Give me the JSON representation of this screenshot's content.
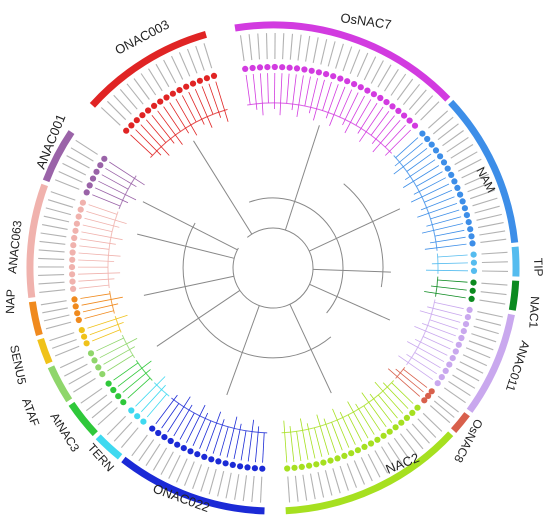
{
  "clades": [
    {
      "key": "onac003",
      "label": "ONAC003",
      "color": "#e02424"
    },
    {
      "key": "osnac7",
      "label": "OsNAC7",
      "color": "#d23be0"
    },
    {
      "key": "nam",
      "label": "NAM",
      "color": "#3d8ee8"
    },
    {
      "key": "tip",
      "label": "TIP",
      "color": "#55bcef"
    },
    {
      "key": "nac1",
      "label": "NAC1",
      "color": "#0b8a1f"
    },
    {
      "key": "anac011",
      "label": "ANAC011",
      "color": "#c9a8ee"
    },
    {
      "key": "osnac8",
      "label": "OsNAC8",
      "color": "#d8604c"
    },
    {
      "key": "nac2",
      "label": "NAC2",
      "color": "#a6e020"
    },
    {
      "key": "onac022",
      "label": "ONAC022",
      "color": "#1b2ad6"
    },
    {
      "key": "tern",
      "label": "TERN",
      "color": "#3fd9f0"
    },
    {
      "key": "anac3",
      "label": "AtNAC3",
      "color": "#2fc83a"
    },
    {
      "key": "ataf",
      "label": "ATAF",
      "color": "#8fd66b"
    },
    {
      "key": "senu5",
      "label": "SENU5",
      "color": "#f0c21a"
    },
    {
      "key": "nap",
      "label": "NAP",
      "color": "#f08a1e"
    },
    {
      "key": "anac063",
      "label": "ANAC063",
      "color": "#f0b2ad"
    },
    {
      "key": "anac001",
      "label": "ANAC001",
      "color": "#9a63a8"
    }
  ]
}
